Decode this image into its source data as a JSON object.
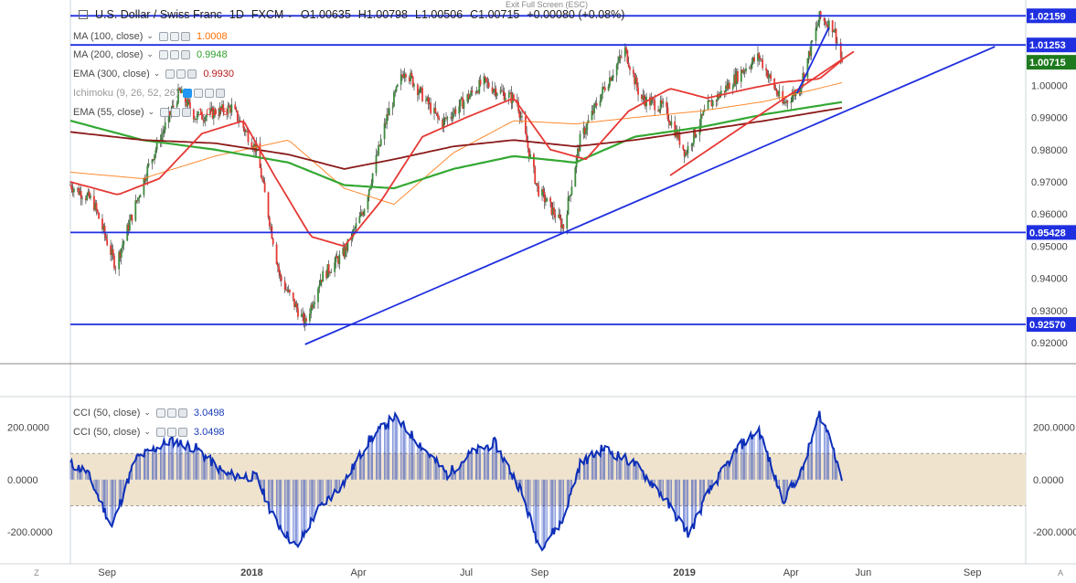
{
  "header": {
    "symbol": "U.S. Dollar / Swiss Franc",
    "interval": "1D",
    "source": "FXCM",
    "open": "O1.00635",
    "high": "H1.00798",
    "low": "L1.00506",
    "close": "C1.00715",
    "change": "+0.00080 (+0.08%)",
    "exit_hint": "Exit Full Screen (ESC)"
  },
  "legend": [
    {
      "name": "MA (100, close)",
      "value": "1.0008",
      "color": "#ff6d00"
    },
    {
      "name": "MA (200, close)",
      "value": "0.9948",
      "color": "#2e9e2e"
    },
    {
      "name": "EMA (300, close)",
      "value": "0.9930",
      "color": "#b71c1c"
    },
    {
      "name": "Ichimoku (9, 26, 52, 26)",
      "value": "",
      "color": "#999999"
    },
    {
      "name": "EMA (55, close)",
      "value": "1.0078",
      "color": "#e53935"
    }
  ],
  "osc_legend": [
    {
      "name": "CCI (50, close)",
      "value": "3.0498",
      "color": "#1a3cb8"
    },
    {
      "name": "CCI (50, close)",
      "value": "3.0498",
      "color": "#1a3cb8"
    }
  ],
  "colors": {
    "up": "#3d8b3d",
    "down": "#e53935",
    "hline": "#1f2fe0",
    "trend": "#1f2fe0",
    "last_price_bg": "#1e7a1e",
    "cci_line": "#0d2fb8",
    "cci_band": "#efe3cd"
  },
  "chart_data": [
    {
      "type": "candlestick",
      "title": "U.S. Dollar / Swiss Franc, 1D, FXCM",
      "ylim": [
        0.9135,
        1.0265
      ],
      "y_ticks": [
        "1.00000",
        "0.99000",
        "0.98000",
        "0.97000",
        "0.96000",
        "0.95000",
        "0.94000",
        "0.93000",
        "0.92000"
      ],
      "x_ticks": [
        "Sep",
        "2018",
        "Apr",
        "Jul",
        "Sep",
        "2019",
        "Apr",
        "Jun",
        "Sep"
      ],
      "x_tick_dates": [
        "2017-09-01",
        "2018-01-01",
        "2018-04-01",
        "2018-07-01",
        "2018-09-01",
        "2019-01-01",
        "2019-04-01",
        "2019-06-01",
        "2019-09-01"
      ],
      "x_range": [
        "2017-08-01",
        "2019-10-16"
      ],
      "last_date": "2019-05-14",
      "key_points": [
        {
          "date": "2017-08-01",
          "close": 0.969
        },
        {
          "date": "2017-08-20",
          "close": 0.964
        },
        {
          "date": "2017-09-08",
          "close": 0.944
        },
        {
          "date": "2017-10-05",
          "close": 0.974
        },
        {
          "date": "2017-11-01",
          "close": 0.998
        },
        {
          "date": "2017-11-15",
          "close": 0.99
        },
        {
          "date": "2017-12-15",
          "close": 0.993
        },
        {
          "date": "2018-01-05",
          "close": 0.98
        },
        {
          "date": "2018-01-25",
          "close": 0.94
        },
        {
          "date": "2018-02-15",
          "close": 0.926
        },
        {
          "date": "2018-02-28",
          "close": 0.94
        },
        {
          "date": "2018-03-20",
          "close": 0.948
        },
        {
          "date": "2018-04-05",
          "close": 0.961
        },
        {
          "date": "2018-04-25",
          "close": 0.99
        },
        {
          "date": "2018-05-10",
          "close": 1.005
        },
        {
          "date": "2018-06-10",
          "close": 0.988
        },
        {
          "date": "2018-07-15",
          "close": 1.001
        },
        {
          "date": "2018-08-13",
          "close": 0.995
        },
        {
          "date": "2018-08-30",
          "close": 0.968
        },
        {
          "date": "2018-09-21",
          "close": 0.956
        },
        {
          "date": "2018-10-05",
          "close": 0.983
        },
        {
          "date": "2018-10-25",
          "close": 0.999
        },
        {
          "date": "2018-11-12",
          "close": 1.011
        },
        {
          "date": "2018-11-25",
          "close": 0.996
        },
        {
          "date": "2018-12-15",
          "close": 0.993
        },
        {
          "date": "2019-01-02",
          "close": 0.979
        },
        {
          "date": "2019-01-20",
          "close": 0.993
        },
        {
          "date": "2019-02-20",
          "close": 1.005
        },
        {
          "date": "2019-03-05",
          "close": 1.009
        },
        {
          "date": "2019-03-25",
          "close": 0.994
        },
        {
          "date": "2019-04-08",
          "close": 0.999
        },
        {
          "date": "2019-04-25",
          "close": 1.021
        },
        {
          "date": "2019-05-07",
          "close": 1.018
        },
        {
          "date": "2019-05-14",
          "close": 1.0071
        }
      ],
      "series": [
        {
          "name": "MA (100, close)",
          "points": [
            [
              "2017-08-01",
              0.973
            ],
            [
              "2017-10-01",
              0.971
            ],
            [
              "2017-12-01",
              0.978
            ],
            [
              "2018-02-01",
              0.983
            ],
            [
              "2018-03-20",
              0.968
            ],
            [
              "2018-05-01",
              0.963
            ],
            [
              "2018-06-20",
              0.979
            ],
            [
              "2018-08-10",
              0.989
            ],
            [
              "2018-10-01",
              0.988
            ],
            [
              "2018-11-20",
              0.99
            ],
            [
              "2019-01-15",
              0.992
            ],
            [
              "2019-03-10",
              0.995
            ],
            [
              "2019-05-14",
              1.0008
            ]
          ]
        },
        {
          "name": "MA (200, close)",
          "points": [
            [
              "2017-08-01",
              0.989
            ],
            [
              "2017-10-01",
              0.983
            ],
            [
              "2017-12-01",
              0.98
            ],
            [
              "2018-02-01",
              0.976
            ],
            [
              "2018-03-20",
              0.969
            ],
            [
              "2018-05-01",
              0.968
            ],
            [
              "2018-06-20",
              0.974
            ],
            [
              "2018-08-10",
              0.978
            ],
            [
              "2018-10-01",
              0.976
            ],
            [
              "2018-11-20",
              0.984
            ],
            [
              "2019-01-15",
              0.987
            ],
            [
              "2019-03-10",
              0.991
            ],
            [
              "2019-05-14",
              0.9948
            ]
          ]
        },
        {
          "name": "EMA (300, close)",
          "points": [
            [
              "2017-08-01",
              0.9855
            ],
            [
              "2017-10-01",
              0.983
            ],
            [
              "2017-12-01",
              0.982
            ],
            [
              "2018-02-01",
              0.9785
            ],
            [
              "2018-03-20",
              0.974
            ],
            [
              "2018-05-01",
              0.977
            ],
            [
              "2018-06-20",
              0.981
            ],
            [
              "2018-08-10",
              0.983
            ],
            [
              "2018-10-01",
              0.981
            ],
            [
              "2018-11-20",
              0.983
            ],
            [
              "2019-01-15",
              0.986
            ],
            [
              "2019-03-10",
              0.989
            ],
            [
              "2019-05-14",
              0.993
            ]
          ]
        },
        {
          "name": "EMA (55, close)",
          "points": [
            [
              "2017-08-01",
              0.97
            ],
            [
              "2017-09-10",
              0.966
            ],
            [
              "2017-10-15",
              0.971
            ],
            [
              "2017-11-20",
              0.985
            ],
            [
              "2017-12-25",
              0.989
            ],
            [
              "2018-01-20",
              0.972
            ],
            [
              "2018-02-20",
              0.953
            ],
            [
              "2018-03-20",
              0.95
            ],
            [
              "2018-04-20",
              0.964
            ],
            [
              "2018-05-25",
              0.984
            ],
            [
              "2018-07-01",
              0.99
            ],
            [
              "2018-08-10",
              0.996
            ],
            [
              "2018-09-10",
              0.98
            ],
            [
              "2018-10-10",
              0.977
            ],
            [
              "2018-11-15",
              0.992
            ],
            [
              "2018-12-20",
              0.999
            ],
            [
              "2019-01-20",
              0.996
            ],
            [
              "2019-02-25",
              0.999
            ],
            [
              "2019-03-25",
              1.001
            ],
            [
              "2019-04-25",
              1.002
            ],
            [
              "2019-05-14",
              1.0078
            ]
          ]
        }
      ],
      "hlines": [
        {
          "price": 1.02159,
          "label": "1.02159"
        },
        {
          "price": 1.01253,
          "label": "1.01253"
        },
        {
          "price": 0.95428,
          "label": "0.95428"
        },
        {
          "price": 0.9257,
          "label": "0.92570"
        }
      ],
      "trendlines": [
        {
          "from": [
            "2018-02-15",
            0.9195
          ],
          "to": [
            "2019-09-20",
            1.012
          ],
          "color": "#1f2fe0"
        },
        {
          "from": [
            "2018-12-20",
            0.972
          ],
          "to": [
            "2019-05-24",
            1.0105
          ],
          "color": "#e53935"
        },
        {
          "from": [
            "2019-04-06",
            0.9975
          ],
          "to": [
            "2019-05-03",
            1.018
          ],
          "color": "#1f2fe0"
        }
      ],
      "last_price": {
        "value": 1.00715,
        "label": "1.00715"
      }
    },
    {
      "type": "histogram-line",
      "title": "CCI (50, close)",
      "ylim": [
        -290,
        310
      ],
      "y_ticks": [
        "200.0000",
        "0.0000",
        "-200.0000"
      ],
      "band": [
        -100,
        100
      ],
      "key_points": [
        {
          "date": "2017-08-01",
          "value": 60
        },
        {
          "date": "2017-08-15",
          "value": 30
        },
        {
          "date": "2017-09-05",
          "value": -180
        },
        {
          "date": "2017-09-25",
          "value": 80
        },
        {
          "date": "2017-10-25",
          "value": 150
        },
        {
          "date": "2017-11-15",
          "value": 120
        },
        {
          "date": "2017-12-10",
          "value": 20
        },
        {
          "date": "2018-01-05",
          "value": 10
        },
        {
          "date": "2018-01-20",
          "value": -150
        },
        {
          "date": "2018-02-08",
          "value": -260
        },
        {
          "date": "2018-02-25",
          "value": -120
        },
        {
          "date": "2018-03-20",
          "value": -10
        },
        {
          "date": "2018-04-10",
          "value": 150
        },
        {
          "date": "2018-05-01",
          "value": 240
        },
        {
          "date": "2018-05-20",
          "value": 150
        },
        {
          "date": "2018-06-15",
          "value": 20
        },
        {
          "date": "2018-07-05",
          "value": 100
        },
        {
          "date": "2018-07-25",
          "value": 140
        },
        {
          "date": "2018-08-15",
          "value": -30
        },
        {
          "date": "2018-09-01",
          "value": -260
        },
        {
          "date": "2018-09-20",
          "value": -160
        },
        {
          "date": "2018-10-05",
          "value": 60
        },
        {
          "date": "2018-10-25",
          "value": 120
        },
        {
          "date": "2018-11-20",
          "value": 60
        },
        {
          "date": "2018-12-10",
          "value": -40
        },
        {
          "date": "2019-01-05",
          "value": -210
        },
        {
          "date": "2019-01-20",
          "value": -60
        },
        {
          "date": "2019-02-15",
          "value": 120
        },
        {
          "date": "2019-03-05",
          "value": 190
        },
        {
          "date": "2019-03-25",
          "value": -80
        },
        {
          "date": "2019-04-10",
          "value": 30
        },
        {
          "date": "2019-04-25",
          "value": 250
        },
        {
          "date": "2019-05-05",
          "value": 150
        },
        {
          "date": "2019-05-14",
          "value": 3.05
        }
      ],
      "last_value": 3.0498
    }
  ]
}
